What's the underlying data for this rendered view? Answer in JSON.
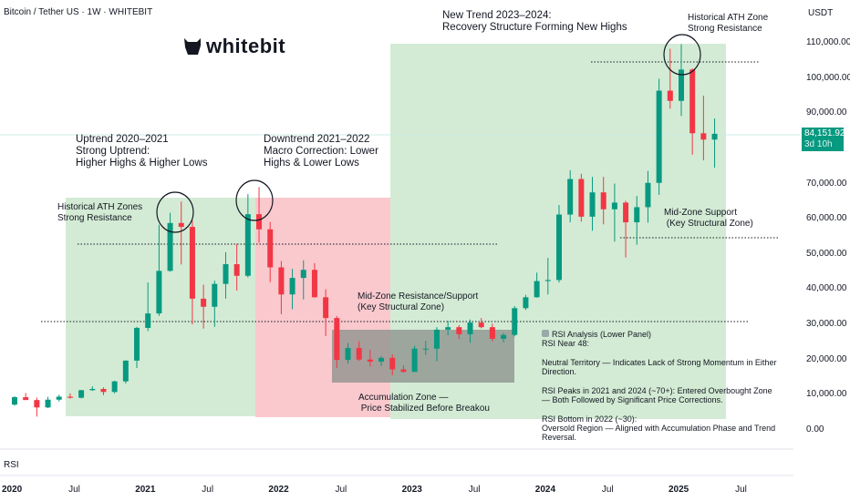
{
  "header": {
    "title": "Bitcoin / Tether US · 1W · WHITEBIT",
    "currency": "USDT",
    "logo_text": "whitebit"
  },
  "price_badge": {
    "price": "84,151.92",
    "countdown": "3d 10h",
    "color": "#089981"
  },
  "rsi_label": "RSI",
  "annotations": {
    "trend2020": "Uptrend 2020–2021\nStrong Uptrend:\nHigher Highs & Higher Lows",
    "trend2021": "Downtrend 2021–2022\nMacro Correction: Lower\nHighs & Lower Lows",
    "trend2023": "New Trend 2023–2024:\nRecovery Structure Forming New Highs",
    "ath_old": "Historical ATH Zones\nStrong Resistance",
    "ath_new": "Historical ATH Zone\nStrong Resistance",
    "mid_resistance": "Mid-Zone Resistance/Support\n(Key Structural Zone)",
    "mid_support": "Mid-Zone Support\n (Key Structural Zone)",
    "accumulation": "Accumulation Zone —\n Price Stabilized Before Breakou",
    "rsi_title": "RSI Analysis (Lower Panel)",
    "rsi_body": "RSI Near 48:\n\nNeutral Territory — Indicates Lack of Strong Momentum in Either Direction.\n\nRSI Peaks in 2021 and 2024 (~70+): Entered Overbought Zone\n— Both Followed by Significant Price Corrections.\n\nRSI Bottom in 2022 (~30):\nOversold Region — Aligned with Accumulation Phase and Trend Reversal."
  },
  "chart_data": {
    "type": "candlestick",
    "title": "Bitcoin / Tether US · 1W · WHITEBIT",
    "ylabel": "USDT",
    "ylim": [
      0,
      110000
    ],
    "yticks": [
      "110,000.00",
      "100,000.00",
      "90,000.00",
      "70,000.00",
      "60,000.00",
      "50,000.00",
      "40,000.00",
      "30,000.00",
      "20,000.00",
      "10,000.00",
      "0.00"
    ],
    "ytick_values": [
      110000,
      100000,
      90000,
      70000,
      60000,
      50000,
      40000,
      30000,
      20000,
      10000,
      0
    ],
    "xticks": [
      "2020",
      "Jul",
      "2021",
      "Jul",
      "2022",
      "Jul",
      "2023",
      "Jul",
      "2024",
      "Jul",
      "2025",
      "Jul"
    ],
    "xtick_dates": [
      "2020-01",
      "2020-07",
      "2021-01",
      "2021-07",
      "2022-01",
      "2022-07",
      "2023-01",
      "2023-07",
      "2024-01",
      "2024-07",
      "2025-01",
      "2025-07"
    ],
    "colors": {
      "up": "#089981",
      "down": "#f23645",
      "green_zone": "#c8e6c9",
      "red_zone": "#f8bbc0",
      "gray_zone": "#8a8f8a"
    },
    "levels": [
      30000,
      53000,
      55000,
      104000
    ],
    "candles_monthly_ohlc": [
      [
        "2020-01",
        7200,
        9600,
        6900,
        9300
      ],
      [
        "2020-02",
        9300,
        10500,
        8500,
        8500
      ],
      [
        "2020-03",
        8500,
        9200,
        3800,
        6400
      ],
      [
        "2020-04",
        6400,
        9400,
        6200,
        8600
      ],
      [
        "2020-05",
        8600,
        10000,
        8100,
        9450
      ],
      [
        "2020-06",
        9450,
        10400,
        8900,
        9150
      ],
      [
        "2020-07",
        9150,
        11400,
        8950,
        11300
      ],
      [
        "2020-08",
        11300,
        12400,
        11100,
        11650
      ],
      [
        "2020-09",
        11650,
        12100,
        9900,
        10800
      ],
      [
        "2020-10",
        10800,
        14000,
        10400,
        13800
      ],
      [
        "2020-11",
        13800,
        19800,
        13200,
        19700
      ],
      [
        "2020-12",
        19700,
        29300,
        17600,
        29000
      ],
      [
        "2021-01",
        29000,
        41900,
        28100,
        33100
      ],
      [
        "2021-02",
        33100,
        58300,
        32400,
        45200
      ],
      [
        "2021-03",
        45200,
        61700,
        45000,
        58800
      ],
      [
        "2021-04",
        58800,
        64900,
        47000,
        57700
      ],
      [
        "2021-05",
        57700,
        59500,
        30000,
        37300
      ],
      [
        "2021-06",
        37300,
        41300,
        28800,
        35000
      ],
      [
        "2021-07",
        35000,
        42400,
        29300,
        41500
      ],
      [
        "2021-08",
        41500,
        50500,
        37300,
        47100
      ],
      [
        "2021-09",
        47100,
        52900,
        39600,
        43800
      ],
      [
        "2021-10",
        43800,
        67000,
        43300,
        61300
      ],
      [
        "2021-11",
        61300,
        69000,
        53200,
        57000
      ],
      [
        "2021-12",
        57000,
        59100,
        42000,
        46200
      ],
      [
        "2022-01",
        46200,
        48000,
        32900,
        38500
      ],
      [
        "2022-02",
        38500,
        45800,
        34300,
        43200
      ],
      [
        "2022-03",
        43200,
        48200,
        37100,
        45500
      ],
      [
        "2022-04",
        45500,
        47400,
        37600,
        37700
      ],
      [
        "2022-05",
        37700,
        40000,
        26700,
        31800
      ],
      [
        "2022-06",
        31800,
        32400,
        17600,
        19900
      ],
      [
        "2022-07",
        19900,
        24700,
        18800,
        23300
      ],
      [
        "2022-08",
        23300,
        25200,
        19600,
        20000
      ],
      [
        "2022-09",
        20000,
        22800,
        18100,
        19400
      ],
      [
        "2022-10",
        19400,
        21000,
        18200,
        20500
      ],
      [
        "2022-11",
        20500,
        21500,
        15500,
        17200
      ],
      [
        "2022-12",
        17200,
        18400,
        16300,
        16500
      ],
      [
        "2023-01",
        16500,
        23900,
        16500,
        23100
      ],
      [
        "2023-02",
        23100,
        25300,
        21300,
        23100
      ],
      [
        "2023-03",
        23100,
        29200,
        19500,
        28500
      ],
      [
        "2023-04",
        28500,
        31000,
        26900,
        29200
      ],
      [
        "2023-05",
        29200,
        29800,
        25800,
        27200
      ],
      [
        "2023-06",
        27200,
        31400,
        24800,
        30500
      ],
      [
        "2023-07",
        30500,
        31800,
        28900,
        29200
      ],
      [
        "2023-08",
        29200,
        30200,
        25200,
        25900
      ],
      [
        "2023-09",
        25900,
        27500,
        24900,
        27000
      ],
      [
        "2023-10",
        27000,
        35200,
        26600,
        34600
      ],
      [
        "2023-11",
        34600,
        38400,
        34100,
        37700
      ],
      [
        "2023-12",
        37700,
        44700,
        37600,
        42300
      ],
      [
        "2024-01",
        42300,
        48900,
        38500,
        42600
      ],
      [
        "2024-02",
        42600,
        63900,
        41900,
        61200
      ],
      [
        "2024-03",
        61200,
        73800,
        59000,
        71300
      ],
      [
        "2024-04",
        71300,
        72800,
        59200,
        60600
      ],
      [
        "2024-05",
        60600,
        71900,
        56600,
        67500
      ],
      [
        "2024-06",
        67500,
        71900,
        58400,
        62700
      ],
      [
        "2024-07",
        62700,
        70000,
        53500,
        64600
      ],
      [
        "2024-08",
        64600,
        65100,
        49000,
        59000
      ],
      [
        "2024-09",
        59000,
        66500,
        52600,
        63300
      ],
      [
        "2024-10",
        63300,
        73600,
        58900,
        70200
      ],
      [
        "2024-11",
        70200,
        99800,
        66800,
        96400
      ],
      [
        "2024-12",
        96400,
        108300,
        91300,
        93500
      ],
      [
        "2025-01",
        93500,
        109600,
        89200,
        102400
      ],
      [
        "2025-02",
        102400,
        102700,
        78200,
        84300
      ],
      [
        "2025-03",
        84300,
        95000,
        76600,
        82500
      ],
      [
        "2025-04",
        82500,
        88500,
        74500,
        84151.92
      ]
    ]
  }
}
